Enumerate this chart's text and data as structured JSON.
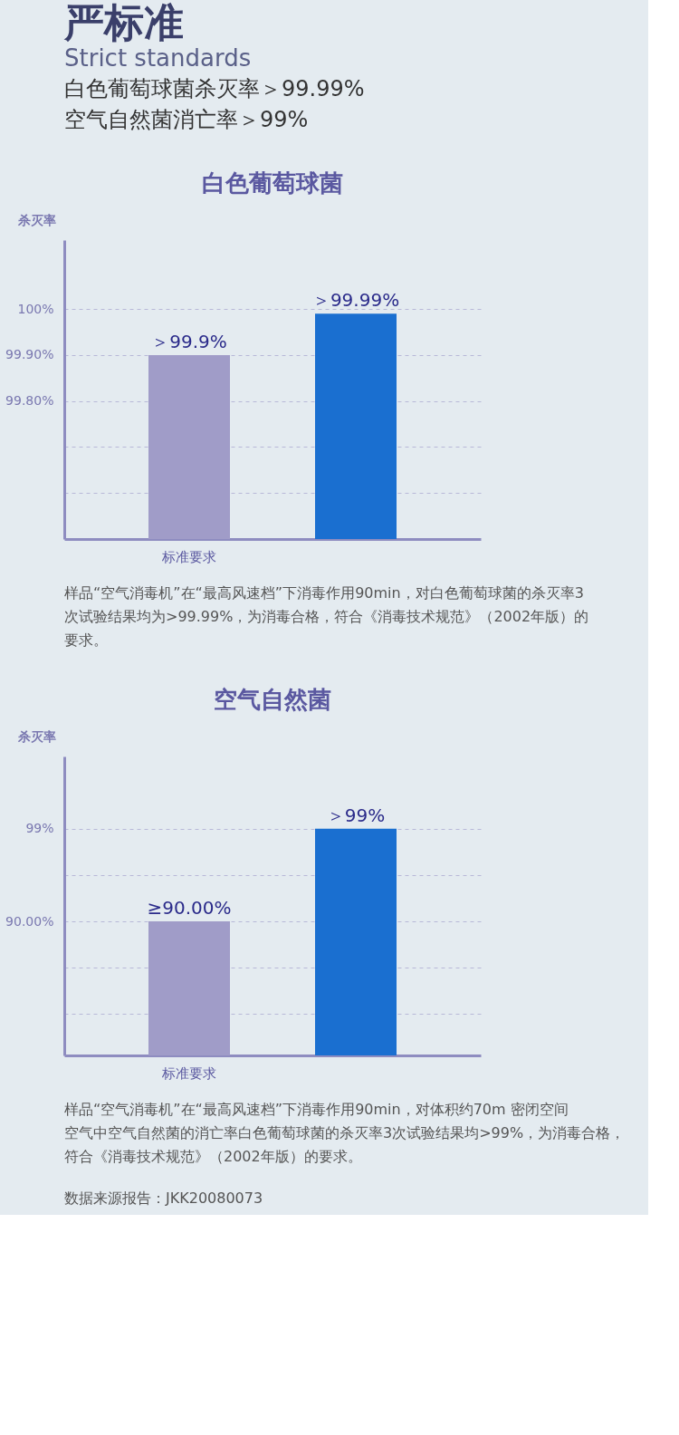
{
  "chart_data": [
    {
      "type": "other",
      "title": "严标准",
      "subtitle": "Strict standards",
      "annotations": [
        "白色葡萄球菌杀灭率＞99.99%",
        "空气自然菌消亡率＞99%"
      ]
    },
    {
      "type": "bar",
      "title": "白色葡萄球菌",
      "ylabel": "杀灭率",
      "categories": [
        "标准要求",
        null
      ],
      "values": [
        99.9,
        99.99
      ],
      "colors": [
        "#a09cc8",
        "#1a6fd0"
      ],
      "value_labels": [
        "＞99.9%",
        "＞99.99%"
      ],
      "ylim": [
        99.5,
        100.15
      ],
      "yticks": [
        {
          "value": 99.6,
          "label": null
        },
        {
          "value": 99.7,
          "label": null
        },
        {
          "value": 99.8,
          "label": "99.80%"
        },
        {
          "value": 99.9,
          "label": "99.90%"
        },
        {
          "value": 100,
          "label": "100%"
        }
      ],
      "grid": "y",
      "line_style": "dashed",
      "annotations": [
        "样品“空气消毒机”在“最高风速档”下消毒作用90min，对白色葡萄球菌的杀灭率3次试验结果均为>99.99%，为消毒合格，符合《消毒技术规范》（2002年版）的要求。"
      ]
    },
    {
      "type": "bar",
      "title": "空气自然菌",
      "ylabel": "杀灭率",
      "categories": [
        "标准要求",
        null
      ],
      "values": [
        90,
        99
      ],
      "colors": [
        "#a09cc8",
        "#1a6fd0"
      ],
      "value_labels": [
        "≥90.00%",
        "＞99%"
      ],
      "ylim": [
        77,
        106
      ],
      "yticks": [
        {
          "value": 81,
          "label": null
        },
        {
          "value": 85.5,
          "label": null
        },
        {
          "value": 90,
          "label": "90.00%"
        },
        {
          "value": 94.5,
          "label": null
        },
        {
          "value": 99,
          "label": "99%"
        }
      ],
      "grid": "y",
      "line_style": "dashed",
      "annotations": [
        "样品“空气消毒机”在“最高风速档”下消毒作用90min，对体积约70m 密闭空间空气中空气自然菌的消亡率白色葡萄球菌的杀灭率3次试验结果均>99%，为消毒合格，符合《消毒技术规范》（2002年版）的要求。",
        "数据来源报告：JKK20080073"
      ]
    }
  ]
}
